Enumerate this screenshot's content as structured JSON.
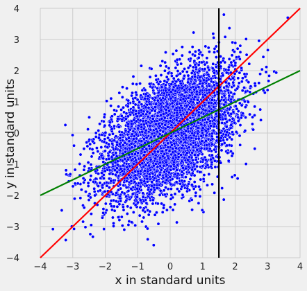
{
  "chart_data": {
    "type": "scatter",
    "title": "",
    "xlabel": "x in standard units",
    "ylabel": "y in standard units",
    "xlim": [
      -4,
      4
    ],
    "ylim": [
      -4,
      4
    ],
    "x_ticks": [
      -4,
      -3,
      -2,
      -1,
      0,
      1,
      2,
      3,
      4
    ],
    "y_ticks": [
      -4,
      -3,
      -2,
      -1,
      0,
      1,
      2,
      3,
      4
    ],
    "x_tick_labels": [
      "−4",
      "−3",
      "−2",
      "−1",
      "0",
      "1",
      "2",
      "3",
      "4"
    ],
    "y_tick_labels": [
      "−4",
      "−3",
      "−2",
      "−1",
      "0",
      "1",
      "2",
      "3",
      "4"
    ],
    "grid": true,
    "legend": "none",
    "scatter": {
      "correlation": 0.5,
      "x_mean": 0,
      "x_sd": 1,
      "y_mean": 0,
      "y_sd": 1,
      "color": "#0000ff",
      "edge_color": "#ffffff"
    },
    "lines": [
      {
        "kind": "line",
        "slope": 1.0,
        "intercept": 0,
        "color": "#ff0000"
      },
      {
        "kind": "line",
        "slope": 0.5,
        "intercept": 0,
        "color": "#008000"
      },
      {
        "kind": "vline",
        "x": 1.5,
        "color": "#000000"
      }
    ],
    "colors": {
      "background": "#f0f0f0",
      "grid": "#cbcbcb"
    }
  }
}
